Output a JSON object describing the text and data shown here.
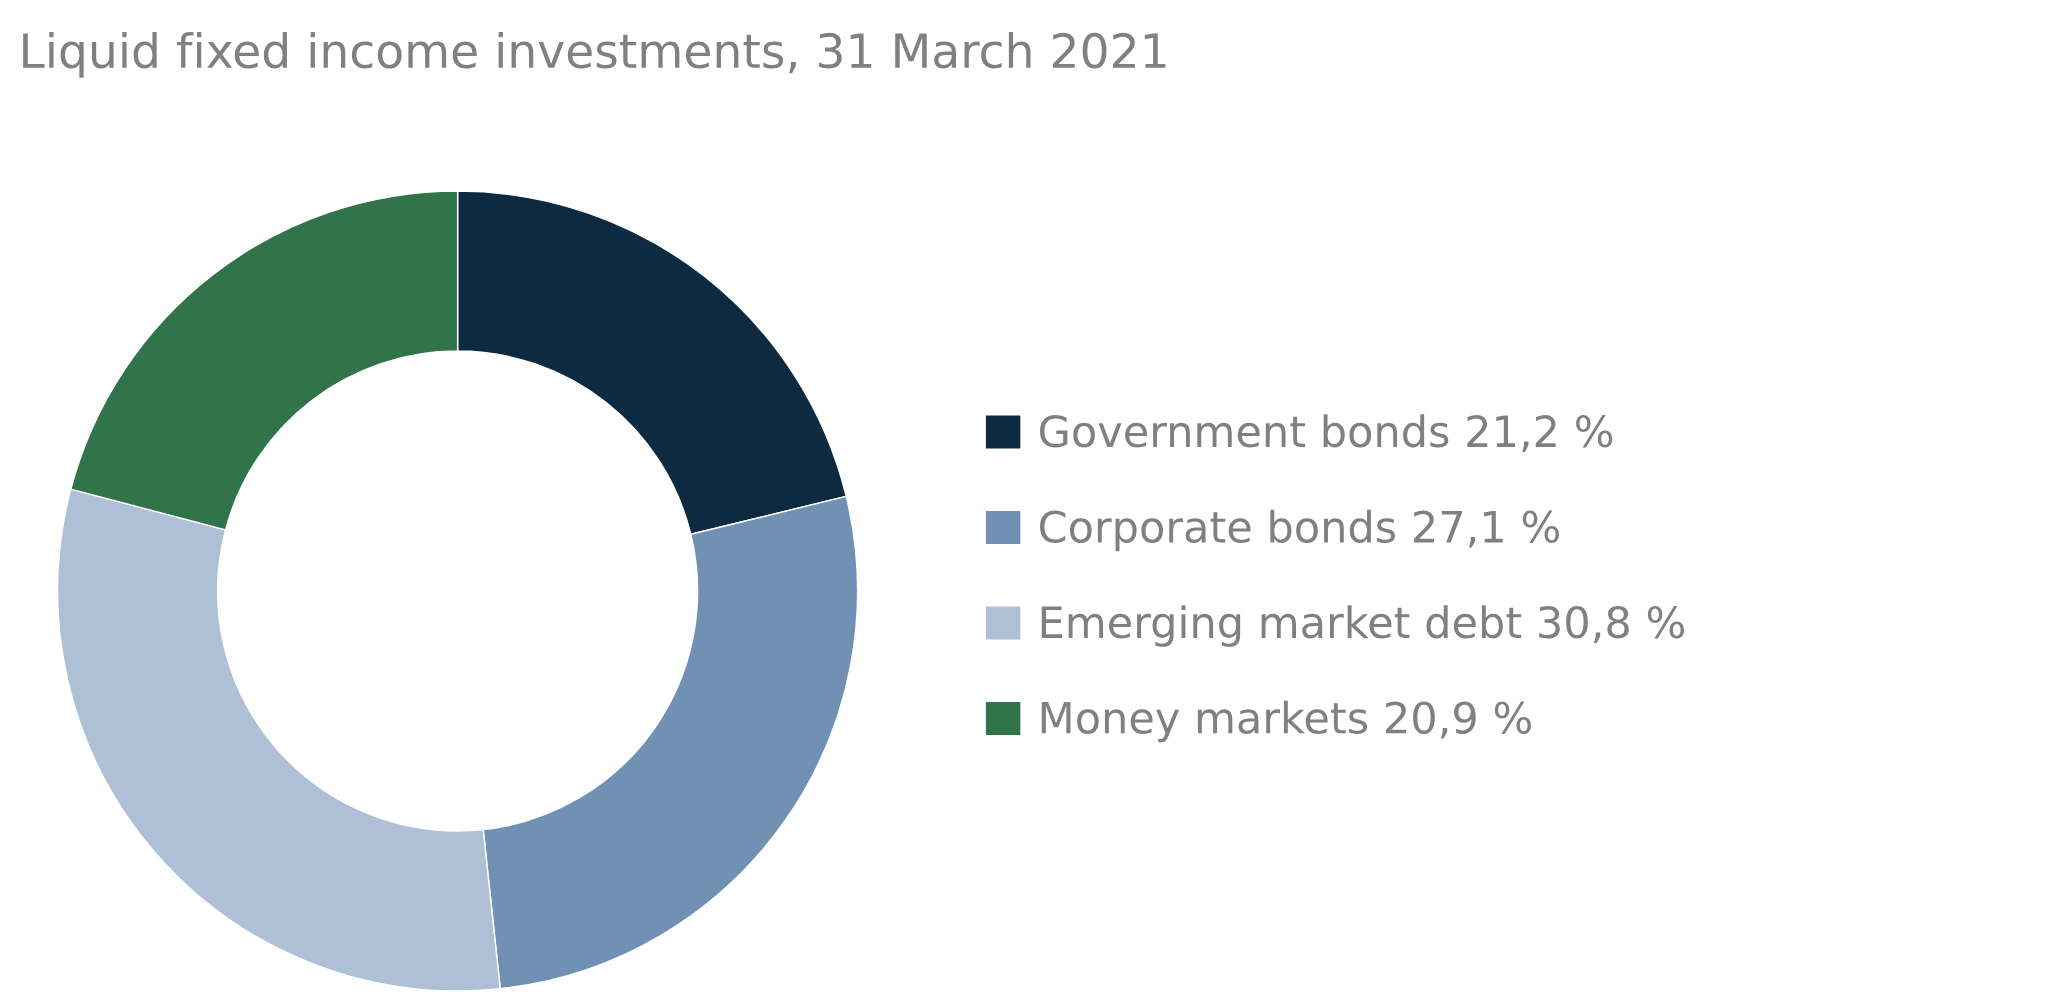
{
  "chart_data": {
    "type": "donut",
    "title": "Liquid fixed income investments, 31 March 2021",
    "categories": [
      "Government bonds",
      "Corporate bonds",
      "Emerging market debt",
      "Money markets"
    ],
    "values": [
      21.2,
      27.1,
      30.8,
      20.9
    ],
    "value_labels": [
      "21,2 %",
      "27,1 %",
      "30,8 %",
      "20,9 %"
    ],
    "colors": [
      "#0d2a40",
      "#7191b4",
      "#adc0d6",
      "#32744a"
    ],
    "legend": "right"
  }
}
